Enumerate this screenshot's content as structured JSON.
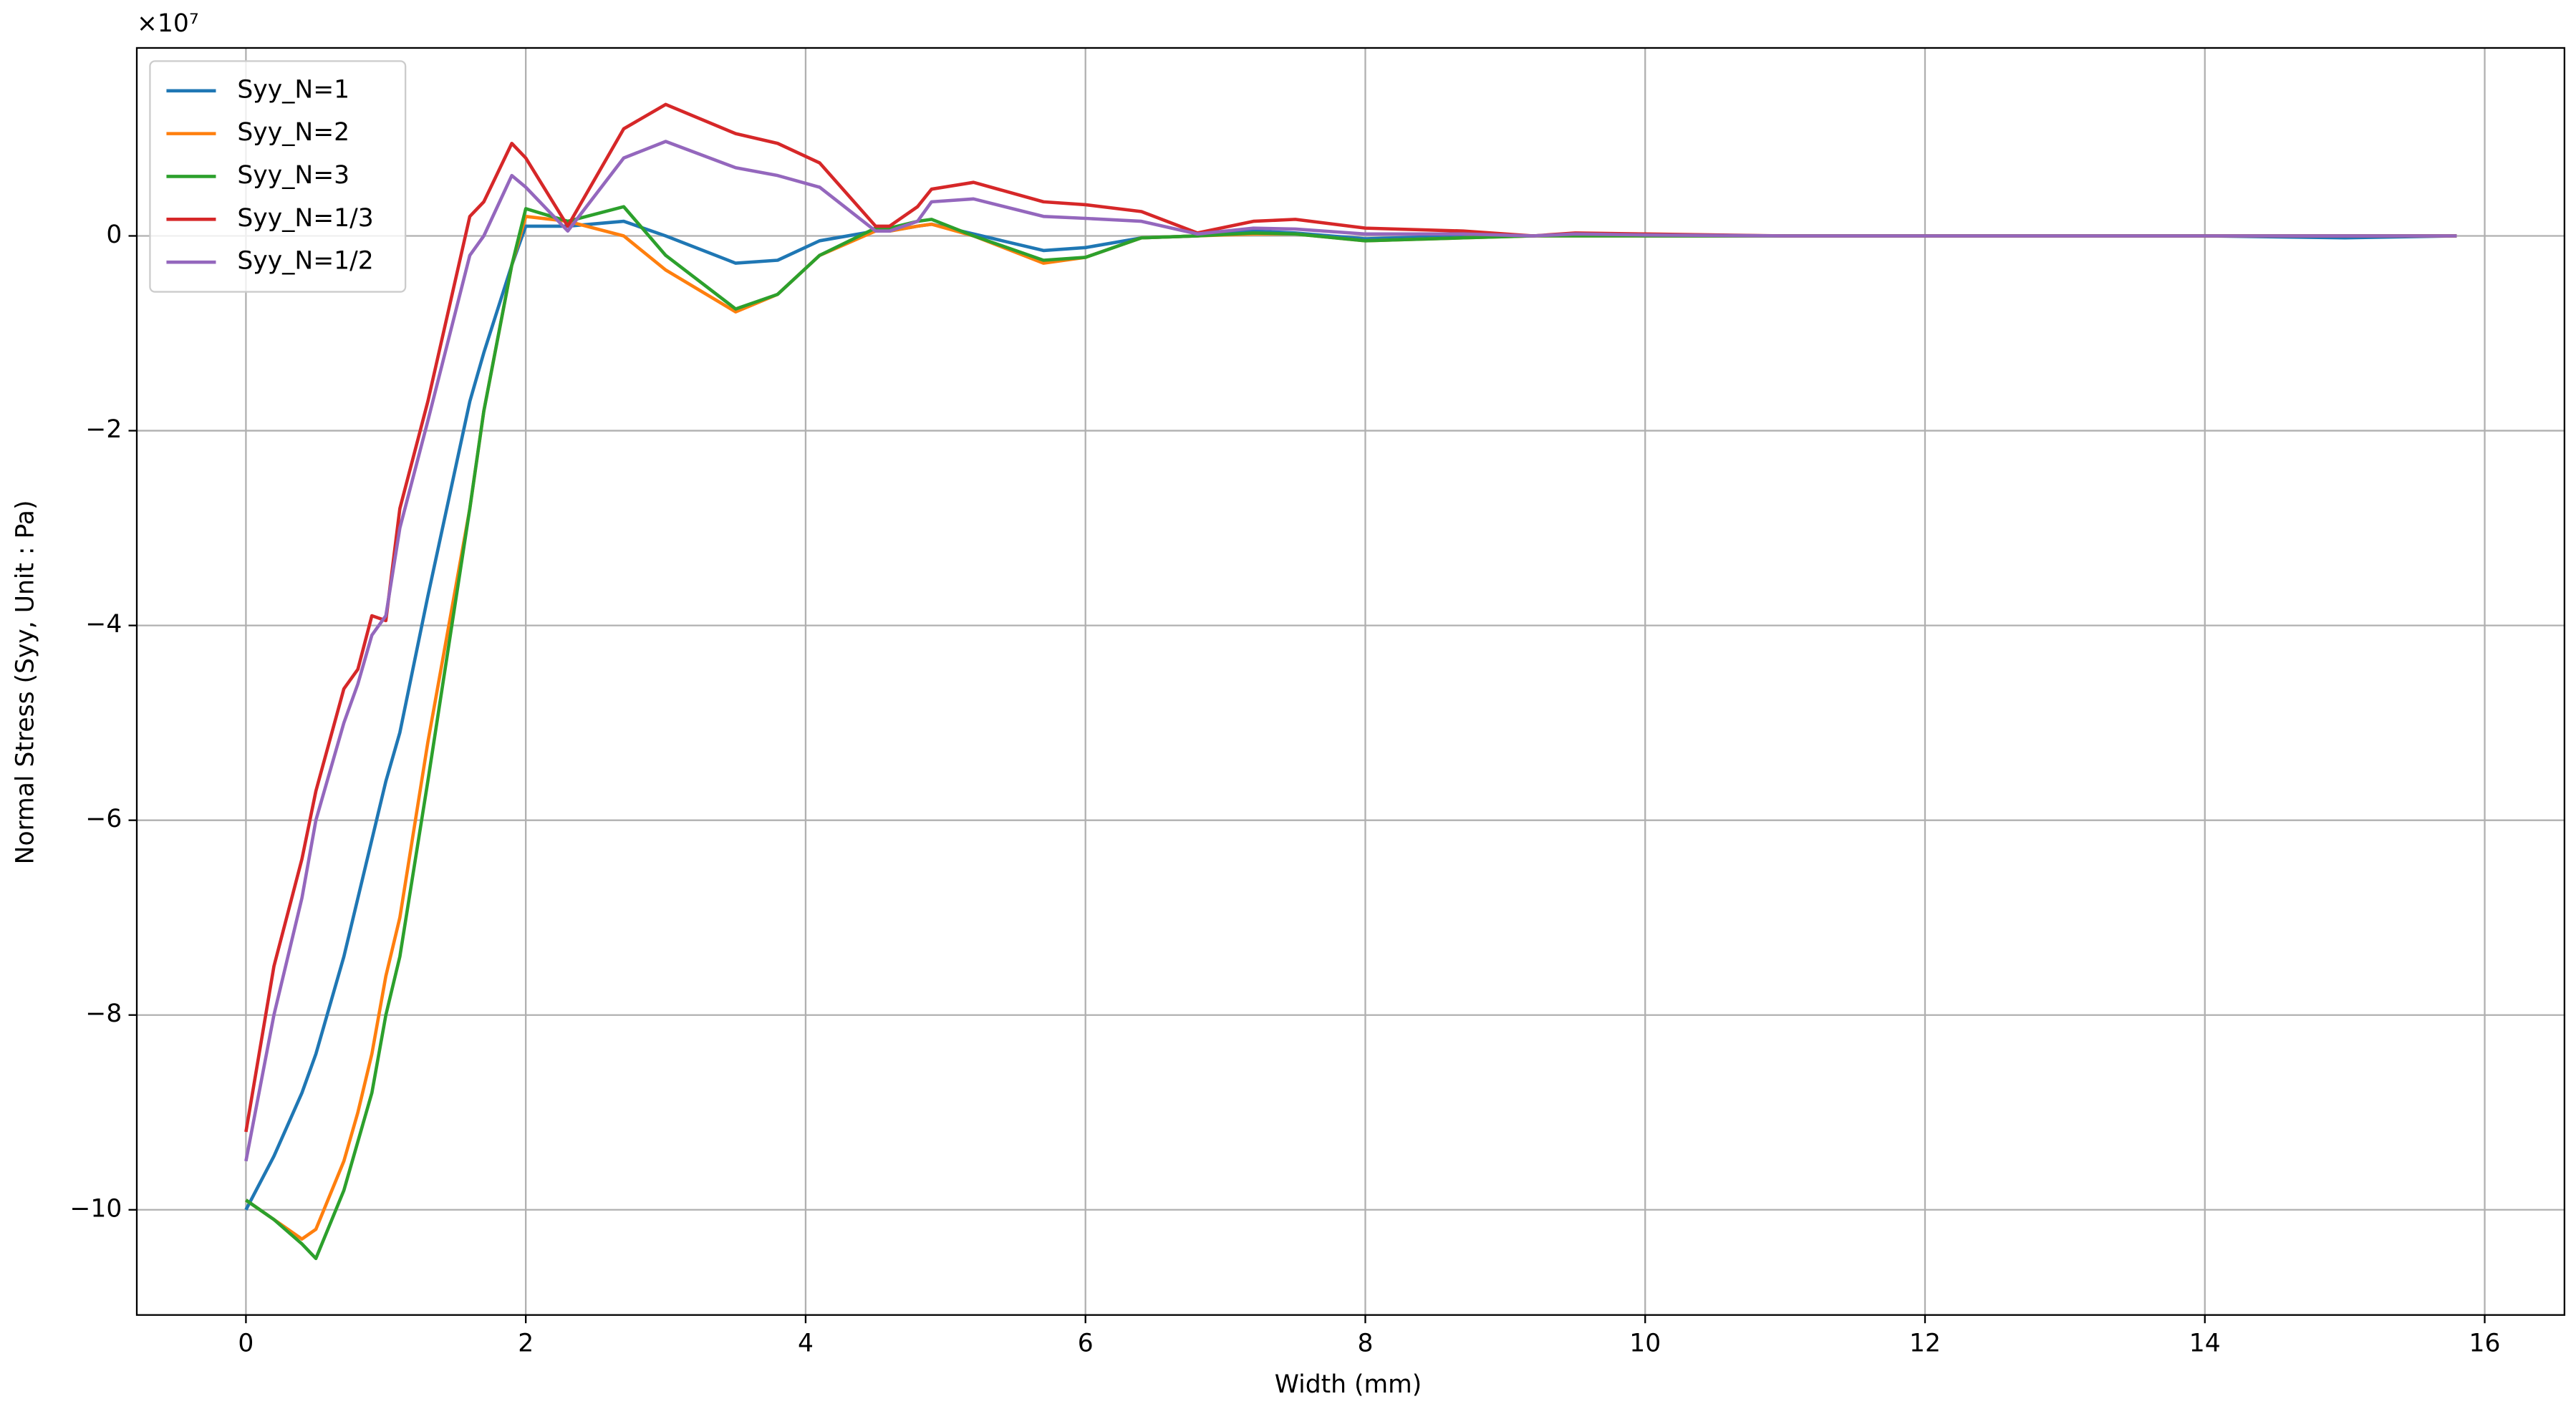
{
  "chart_data": {
    "type": "line",
    "x_label": "Width (mm)",
    "y_label": "Normal Stress (Syy, Unit : Pa)",
    "y_offset_text": "×10⁷",
    "x": [
      0,
      0.2,
      0.4,
      0.5,
      0.7,
      0.8,
      0.9,
      1.0,
      1.1,
      1.3,
      1.6,
      1.7,
      1.9,
      2.0,
      2.3,
      2.7,
      3.0,
      3.5,
      3.8,
      4.1,
      4.5,
      4.6,
      4.8,
      4.9,
      5.2,
      5.7,
      6.0,
      6.4,
      6.8,
      7.2,
      7.5,
      8.0,
      8.7,
      9.2,
      9.5,
      10.0,
      11,
      12,
      13,
      14,
      15,
      15.8
    ],
    "series": [
      {
        "name": "Syy_N=1",
        "color": "#1f77b4",
        "values": [
          -10.0,
          -9.45,
          -8.8,
          -8.4,
          -7.4,
          -6.8,
          -6.2,
          -5.6,
          -5.1,
          -3.7,
          -1.7,
          -1.2,
          -0.3,
          0.1,
          0.1,
          0.15,
          0.0,
          -0.28,
          -0.25,
          -0.05,
          0.05,
          0.05,
          0.1,
          0.12,
          0.02,
          -0.15,
          -0.12,
          -0.02,
          0,
          0.05,
          0.03,
          -0.03,
          0,
          0,
          0.02,
          0,
          0,
          0,
          0,
          0,
          -0.02,
          0
        ]
      },
      {
        "name": "Syy_N=2",
        "color": "#ff7f0e",
        "values": [
          -9.9,
          -10.1,
          -10.3,
          -10.2,
          -9.5,
          -9.0,
          -8.4,
          -7.6,
          -7.0,
          -5.2,
          -2.8,
          -1.8,
          -0.3,
          0.2,
          0.15,
          0.0,
          -0.35,
          -0.78,
          -0.6,
          -0.2,
          0.05,
          0.05,
          0.1,
          0.12,
          0.0,
          -0.28,
          -0.22,
          -0.02,
          0,
          0.02,
          0.02,
          -0.05,
          -0.02,
          0,
          0,
          0,
          0,
          0,
          0,
          0,
          0,
          0
        ]
      },
      {
        "name": "Syy_N=3",
        "color": "#2ca02c",
        "values": [
          -9.9,
          -10.1,
          -10.35,
          -10.5,
          -9.8,
          -9.3,
          -8.8,
          -8.0,
          -7.4,
          -5.6,
          -2.8,
          -1.8,
          -0.3,
          0.28,
          0.15,
          0.3,
          -0.2,
          -0.75,
          -0.6,
          -0.2,
          0.08,
          0.08,
          0.15,
          0.17,
          0.0,
          -0.25,
          -0.22,
          -0.02,
          0,
          0.03,
          0.02,
          -0.05,
          -0.02,
          0,
          0,
          0,
          0,
          0,
          0,
          0,
          0,
          0
        ]
      },
      {
        "name": "Syy_N=1/3",
        "color": "#d62728",
        "values": [
          -9.2,
          -7.5,
          -6.4,
          -5.7,
          -4.65,
          -4.45,
          -3.9,
          -3.95,
          -2.8,
          -1.7,
          0.2,
          0.35,
          0.95,
          0.8,
          0.1,
          1.1,
          1.35,
          1.05,
          0.95,
          0.75,
          0.1,
          0.1,
          0.3,
          0.48,
          0.55,
          0.35,
          0.32,
          0.25,
          0.03,
          0.15,
          0.17,
          0.08,
          0.05,
          0,
          0.03,
          0.02,
          0,
          0,
          0,
          0,
          0,
          0
        ]
      },
      {
        "name": "Syy_N=1/2",
        "color": "#9467bd",
        "values": [
          -9.5,
          -8.0,
          -6.8,
          -6.0,
          -5.0,
          -4.6,
          -4.1,
          -3.9,
          -3.0,
          -1.9,
          -0.2,
          0.0,
          0.62,
          0.5,
          0.05,
          0.8,
          0.97,
          0.7,
          0.62,
          0.5,
          0.05,
          0.05,
          0.15,
          0.35,
          0.38,
          0.2,
          0.18,
          0.15,
          0.02,
          0.08,
          0.07,
          0.02,
          0.02,
          0,
          0.02,
          0.01,
          0,
          0,
          0,
          0,
          0,
          0
        ]
      }
    ],
    "xlim": [
      -0.78,
      16.57
    ],
    "ylim": [
      -11.08,
      1.93
    ],
    "xticks": [
      0,
      2,
      4,
      6,
      8,
      10,
      12,
      14,
      16
    ],
    "yticks": [
      {
        "value": -10,
        "label": "−10"
      },
      {
        "value": -8,
        "label": "−8"
      },
      {
        "value": -6,
        "label": "−6"
      },
      {
        "value": -4,
        "label": "−4"
      },
      {
        "value": -2,
        "label": "−2"
      },
      0
    ],
    "grid": true,
    "legend": "upper left"
  }
}
